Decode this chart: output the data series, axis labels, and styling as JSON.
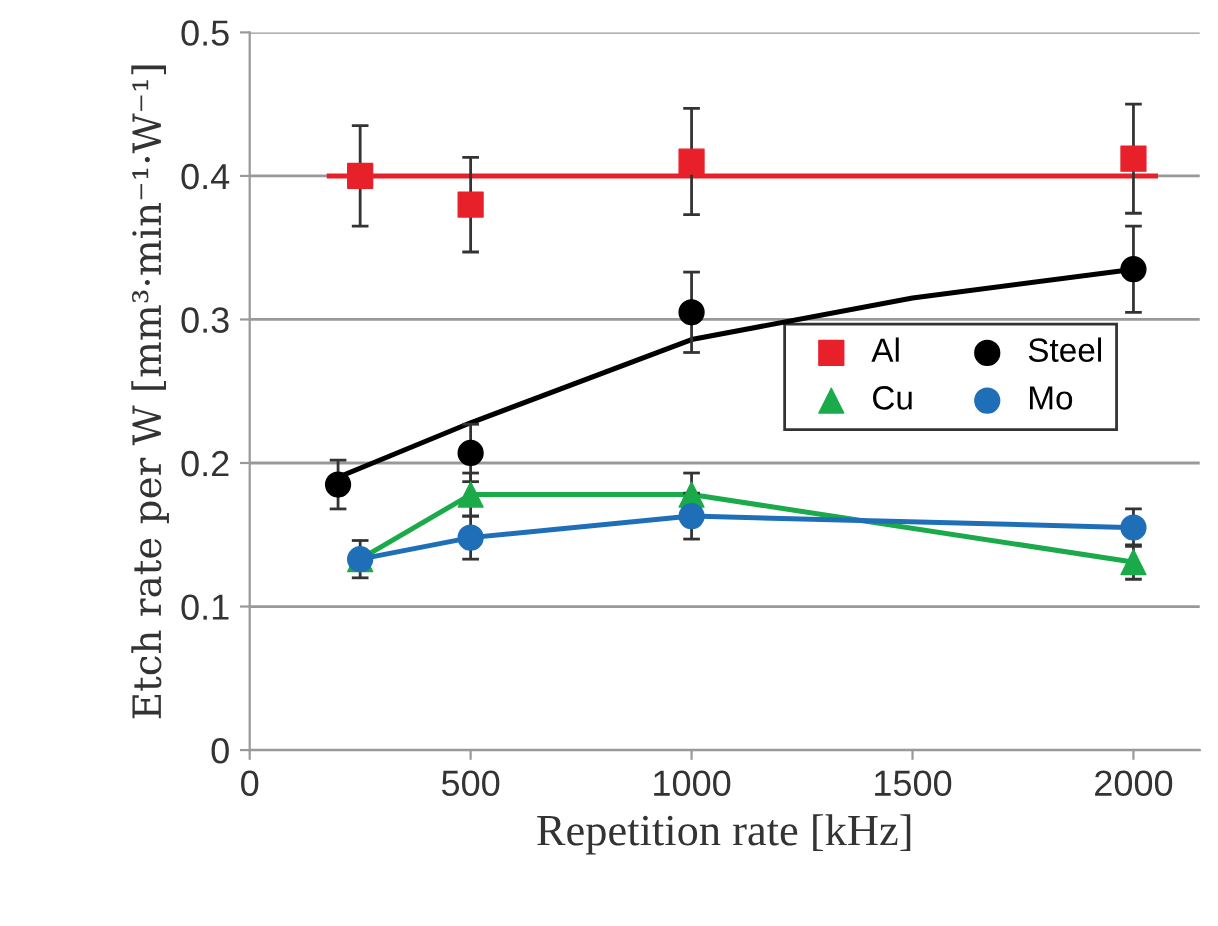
{
  "chart_data": {
    "type": "scatter",
    "xlabel": "Repetition rate [kHz]",
    "ylabel": "Etch rate per W [mm³·min⁻¹·W⁻¹]",
    "xlim": [
      0,
      2150
    ],
    "xticks": [
      0,
      500,
      1000,
      1500,
      2000
    ],
    "ylim": [
      0,
      0.5
    ],
    "yticks": [
      0,
      0.1,
      0.2,
      0.3,
      0.4,
      0.5
    ],
    "grid": "y",
    "legend": "right",
    "series": [
      {
        "name": "Al",
        "color": "#e8202a",
        "marker": "square",
        "x": [
          250,
          500,
          1000,
          2000
        ],
        "values": [
          0.4,
          0.38,
          0.41,
          0.412
        ],
        "errors": [
          0.035,
          0.033,
          0.037,
          0.038
        ]
      },
      {
        "name": "Cu",
        "type": "line",
        "color": "#1aaa4a",
        "marker": "triangle",
        "x": [
          250,
          500,
          1000,
          2000
        ],
        "values": [
          0.133,
          0.178,
          0.178,
          0.131
        ],
        "errors": [
          null,
          0.015,
          0.015,
          0.012
        ]
      },
      {
        "name": "Steel",
        "color": "#000000",
        "marker": "circle",
        "x": [
          200,
          500,
          1000,
          2000
        ],
        "values": [
          0.185,
          0.207,
          0.305,
          0.335
        ],
        "errors": [
          0.017,
          0.02,
          0.028,
          0.03
        ]
      },
      {
        "name": "Mo",
        "type": "line",
        "color": "#1f6fb8",
        "marker": "circle",
        "x": [
          250,
          500,
          1000,
          2000
        ],
        "values": [
          0.133,
          0.148,
          0.163,
          0.155
        ],
        "errors": [
          0.013,
          0.015,
          0.016,
          0.013
        ]
      },
      {
        "type": "line",
        "color": "#e8202a",
        "marker": "none",
        "x": [
          180,
          2050
        ],
        "values": [
          0.4,
          0.4
        ]
      },
      {
        "type": "line",
        "color": "#000000",
        "marker": "none",
        "x": [
          200,
          500,
          1000,
          1500,
          2000
        ],
        "values": [
          0.19,
          0.228,
          0.286,
          0.315,
          0.335
        ]
      }
    ]
  }
}
